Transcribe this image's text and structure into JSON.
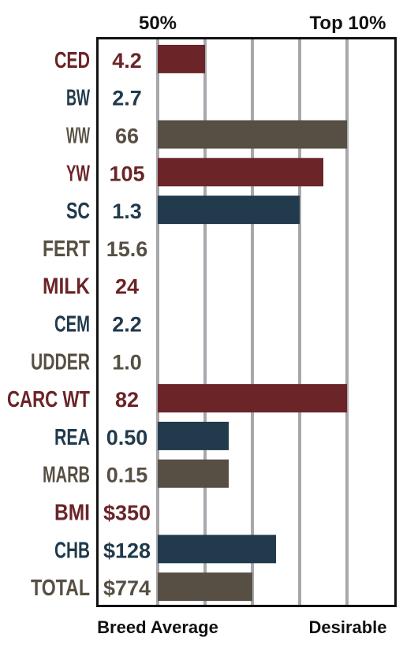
{
  "chart_data": {
    "type": "bar",
    "orientation": "horizontal",
    "header_left": "50%",
    "header_right": "Top 10%",
    "footer_left": "Breed Average",
    "footer_right": "Desirable",
    "xlim": [
      0,
      5
    ],
    "gridlines": [
      1,
      2,
      3,
      4
    ],
    "grid": true,
    "categories": [
      "CED",
      "BW",
      "WW",
      "YW",
      "SC",
      "FERT",
      "MILK",
      "CEM",
      "UDDER",
      "CARC WT",
      "REA",
      "MARB",
      "BMI",
      "CHB",
      "TOTAL"
    ],
    "value_labels": [
      "4.2",
      "2.7",
      "66",
      "105",
      "1.3",
      "15.6",
      "24",
      "2.2",
      "1.0",
      "82",
      "0.50",
      "0.15",
      "$350",
      "$128",
      "$774"
    ],
    "values": [
      1.0,
      0,
      4.0,
      3.5,
      3.0,
      0,
      0,
      0,
      0,
      4.0,
      1.5,
      1.5,
      0,
      2.5,
      2.0
    ],
    "colors": [
      "#6b2428",
      "#213a4c",
      "#574f43",
      "#6b2428",
      "#213a4c",
      "#574f43",
      "#6b2428",
      "#213a4c",
      "#574f43",
      "#6b2428",
      "#213a4c",
      "#574f43",
      "#6b2428",
      "#213a4c",
      "#574f43"
    ]
  }
}
